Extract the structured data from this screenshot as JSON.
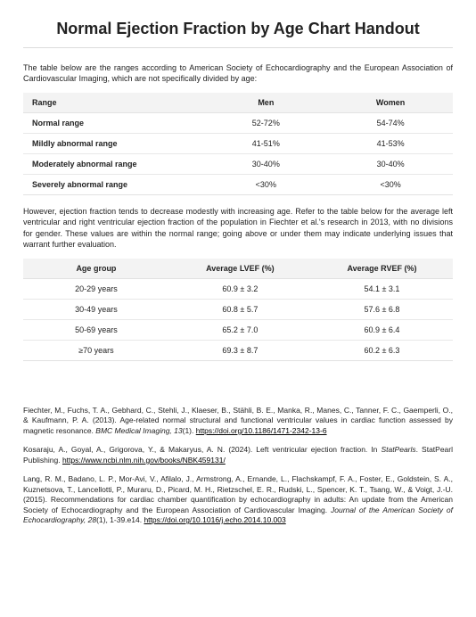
{
  "title": "Normal Ejection Fraction by Age Chart Handout",
  "intro": "The table below are the ranges according to American Society of Echocardiography and the European Association of Cardiovascular Imaging, which are not specifically divided by age:",
  "table1": {
    "columns": [
      "Range",
      "Men",
      "Women"
    ],
    "rows": [
      [
        "Normal range",
        "52-72%",
        "54-74%"
      ],
      [
        "Mildly abnormal range",
        "41-51%",
        "41-53%"
      ],
      [
        "Moderately abnormal range",
        "30-40%",
        "30-40%"
      ],
      [
        "Severely abnormal range",
        "<30%",
        "<30%"
      ]
    ],
    "col_widths": [
      "42%",
      "29%",
      "29%"
    ],
    "header_bg": "#f3f3f3",
    "border_color": "#e2e2e2"
  },
  "mid": "However, ejection fraction tends to decrease modestly with increasing age. Refer to the table below for the average left ventricular and right ventricular ejection fraction of the population in Fiechter et al.'s research in 2013, with no divisions for gender. These values are within the normal range; going above or under them may indicate underlying issues that warrant further evaluation.",
  "table2": {
    "columns": [
      "Age group",
      "Average LVEF (%)",
      "Average RVEF (%)"
    ],
    "rows": [
      [
        "20-29 years",
        "60.9 ± 3.2",
        "54.1 ± 3.1"
      ],
      [
        "30-49 years",
        "60.8 ± 5.7",
        "57.6 ± 6.8"
      ],
      [
        "50-69 years",
        "65.2 ± 7.0",
        "60.9 ± 6.4"
      ],
      [
        "≥70 years",
        "69.3 ± 8.7",
        "60.2 ± 6.3"
      ]
    ],
    "col_widths": [
      "34%",
      "33%",
      "33%"
    ],
    "header_bg": "#f3f3f3",
    "border_color": "#e2e2e2"
  },
  "references": [
    {
      "pre": "Fiechter, M., Fuchs, T. A., Gebhard, C., Stehli, J., Klaeser, B., Stähli, B. E., Manka, R., Manes, C., Tanner, F. C., Gaemperli, O., & Kaufmann, P. A. (2013). Age-related normal structural and functional ventricular values in cardiac function assessed by magnetic resonance. ",
      "italic": "BMC Medical Imaging, 13",
      "post": "(1). ",
      "link_text": "https://doi.org/10.1186/1471-2342-13-6",
      "link_href": "https://doi.org/10.1186/1471-2342-13-6"
    },
    {
      "pre": "Kosaraju, A., Goyal, A., Grigorova, Y., & Makaryus, A. N. (2024). Left ventricular ejection fraction. In ",
      "italic": "StatPearls",
      "post": ". StatPearl Publishing. ",
      "link_text": "https://www.ncbi.nlm.nih.gov/books/NBK459131/",
      "link_href": "https://www.ncbi.nlm.nih.gov/books/NBK459131/"
    },
    {
      "pre": "Lang, R. M., Badano, L. P., Mor-Avi, V., Afilalo, J., Armstrong, A., Ernande, L., Flachskampf, F. A., Foster, E., Goldstein, S. A., Kuznetsova, T., Lancellotti, P., Muraru, D., Picard, M. H., Rietzschel, E. R., Rudski, L., Spencer, K. T., Tsang, W., & Voigt, J.-U. (2015). Recommendations for cardiac chamber quantification by echocardiography in adults: An update from the American Society of Echocardiography and the European Association of Cardiovascular Imaging. ",
      "italic": "Journal of the American Society of Echocardiography, 28",
      "post": "(1), 1-39.e14. ",
      "link_text": "https://doi.org/10.1016/j.echo.2014.10.003",
      "link_href": "https://doi.org/10.1016/j.echo.2014.10.003"
    }
  ]
}
